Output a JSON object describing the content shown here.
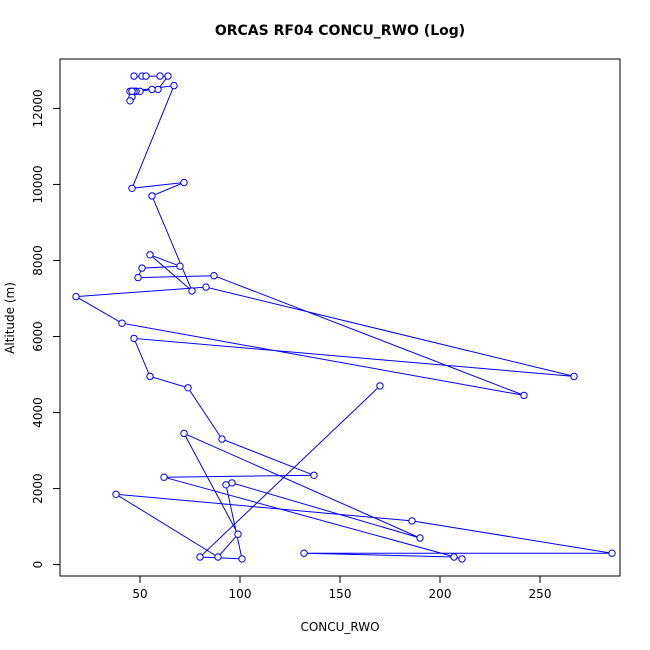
{
  "chart_data": {
    "type": "line",
    "title": "ORCAS RF04 CONCU_RWO (Log)",
    "xlabel": "CONCU_RWO",
    "ylabel": "Altitude (m)",
    "xlim": [
      10,
      290
    ],
    "ylim": [
      -300,
      13300
    ],
    "xticks": [
      "50",
      "100",
      "150",
      "200",
      "250"
    ],
    "xtick_values": [
      50,
      100,
      150,
      200,
      250
    ],
    "yticks": [
      "0",
      "2000",
      "4000",
      "6000",
      "8000",
      "10000",
      "12000"
    ],
    "ytick_values": [
      0,
      2000,
      4000,
      6000,
      8000,
      10000,
      12000
    ],
    "grid": false,
    "line_color": "#0000ff",
    "markers": "open-circle",
    "series": [
      {
        "x": [
          47,
          51,
          53,
          60,
          64,
          59,
          56,
          50,
          48,
          48,
          47,
          46,
          45,
          45,
          46,
          46,
          67,
          46,
          72,
          56,
          76,
          55,
          70,
          51,
          49,
          87,
          242,
          41,
          18,
          83,
          267,
          47,
          55,
          74,
          91,
          137,
          62,
          211,
          207,
          132,
          286,
          186,
          38,
          89,
          99,
          72,
          190,
          96,
          93,
          101,
          80,
          170
        ],
        "y": [
          12850,
          12850,
          12850,
          12850,
          12850,
          12500,
          12500,
          12450,
          12450,
          12450,
          12450,
          12300,
          12200,
          12450,
          12450,
          12450,
          12600,
          9900,
          10050,
          9700,
          7200,
          8150,
          7850,
          7800,
          7550,
          7600,
          4450,
          6350,
          7050,
          7300,
          4950,
          5950,
          4950,
          4650,
          3300,
          2350,
          2300,
          150,
          200,
          300,
          300,
          1150,
          1850,
          200,
          800,
          3450,
          700,
          2150,
          2100,
          150,
          200,
          4700
        ]
      }
    ]
  }
}
